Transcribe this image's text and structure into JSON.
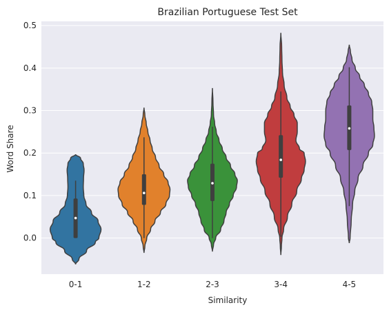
{
  "chart_data": {
    "type": "violin",
    "title": "Brazilian Portuguese Test Set",
    "xlabel": "Similarity",
    "ylabel": "Word Share",
    "ylim": [
      -0.085,
      0.51
    ],
    "yticks": [
      0.0,
      0.1,
      0.2,
      0.3,
      0.4,
      0.5
    ],
    "ytick_labels": [
      "0.0",
      "0.1",
      "0.2",
      "0.3",
      "0.4",
      "0.5"
    ],
    "grid": true,
    "background_color": "#eaeaf2",
    "categories": [
      "0-1",
      "1-2",
      "2-3",
      "3-4",
      "4-5"
    ],
    "colors": [
      "#3274a1",
      "#e1812c",
      "#3a923a",
      "#c03d3e",
      "#9372b2"
    ],
    "violins": [
      {
        "category": "0-1",
        "min": -0.062,
        "max": 0.197,
        "whisker_low": 0.0,
        "whisker_high": 0.135,
        "q1": 0.0,
        "median": 0.047,
        "q3": 0.093,
        "density": [
          [
            -0.062,
            0.0
          ],
          [
            -0.05,
            0.12
          ],
          [
            -0.03,
            0.4
          ],
          [
            -0.01,
            0.72
          ],
          [
            0.0,
            0.85
          ],
          [
            0.02,
            0.93
          ],
          [
            0.04,
            0.82
          ],
          [
            0.06,
            0.58
          ],
          [
            0.08,
            0.38
          ],
          [
            0.1,
            0.3
          ],
          [
            0.12,
            0.28
          ],
          [
            0.14,
            0.29
          ],
          [
            0.16,
            0.31
          ],
          [
            0.175,
            0.28
          ],
          [
            0.188,
            0.18
          ],
          [
            0.197,
            0.0
          ]
        ]
      },
      {
        "category": "1-2",
        "min": -0.035,
        "max": 0.307,
        "whisker_low": 0.0,
        "whisker_high": 0.237,
        "q1": 0.078,
        "median": 0.106,
        "q3": 0.15,
        "density": [
          [
            -0.035,
            0.0
          ],
          [
            -0.02,
            0.03
          ],
          [
            0.0,
            0.1
          ],
          [
            0.02,
            0.24
          ],
          [
            0.04,
            0.4
          ],
          [
            0.06,
            0.6
          ],
          [
            0.08,
            0.8
          ],
          [
            0.1,
            0.93
          ],
          [
            0.115,
            0.95
          ],
          [
            0.13,
            0.88
          ],
          [
            0.15,
            0.72
          ],
          [
            0.17,
            0.55
          ],
          [
            0.19,
            0.42
          ],
          [
            0.21,
            0.3
          ],
          [
            0.23,
            0.22
          ],
          [
            0.25,
            0.14
          ],
          [
            0.27,
            0.08
          ],
          [
            0.29,
            0.03
          ],
          [
            0.307,
            0.0
          ]
        ]
      },
      {
        "category": "2-3",
        "min": -0.032,
        "max": 0.353,
        "whisker_low": 0.0,
        "whisker_high": 0.262,
        "q1": 0.087,
        "median": 0.129,
        "q3": 0.175,
        "density": [
          [
            -0.032,
            0.0
          ],
          [
            -0.015,
            0.04
          ],
          [
            0.0,
            0.12
          ],
          [
            0.02,
            0.3
          ],
          [
            0.04,
            0.42
          ],
          [
            0.06,
            0.5
          ],
          [
            0.08,
            0.62
          ],
          [
            0.1,
            0.76
          ],
          [
            0.12,
            0.88
          ],
          [
            0.135,
            0.91
          ],
          [
            0.15,
            0.82
          ],
          [
            0.17,
            0.66
          ],
          [
            0.19,
            0.5
          ],
          [
            0.21,
            0.36
          ],
          [
            0.23,
            0.24
          ],
          [
            0.25,
            0.14
          ],
          [
            0.27,
            0.08
          ],
          [
            0.29,
            0.04
          ],
          [
            0.32,
            0.02
          ],
          [
            0.353,
            0.0
          ]
        ]
      },
      {
        "category": "3-4",
        "min": -0.04,
        "max": 0.483,
        "whisker_low": 0.003,
        "whisker_high": 0.345,
        "q1": 0.142,
        "median": 0.184,
        "q3": 0.242,
        "density": [
          [
            -0.04,
            0.0
          ],
          [
            -0.02,
            0.02
          ],
          [
            0.0,
            0.04
          ],
          [
            0.02,
            0.1
          ],
          [
            0.05,
            0.24
          ],
          [
            0.08,
            0.4
          ],
          [
            0.11,
            0.58
          ],
          [
            0.14,
            0.75
          ],
          [
            0.16,
            0.85
          ],
          [
            0.18,
            0.9
          ],
          [
            0.2,
            0.85
          ],
          [
            0.21,
            0.68
          ],
          [
            0.23,
            0.55
          ],
          [
            0.25,
            0.6
          ],
          [
            0.27,
            0.6
          ],
          [
            0.29,
            0.48
          ],
          [
            0.31,
            0.34
          ],
          [
            0.33,
            0.22
          ],
          [
            0.36,
            0.12
          ],
          [
            0.39,
            0.06
          ],
          [
            0.42,
            0.04
          ],
          [
            0.45,
            0.03
          ],
          [
            0.483,
            0.0
          ]
        ]
      },
      {
        "category": "4-5",
        "min": -0.012,
        "max": 0.455,
        "whisker_low": 0.075,
        "whisker_high": 0.402,
        "q1": 0.207,
        "median": 0.258,
        "q3": 0.312,
        "density": [
          [
            -0.012,
            0.0
          ],
          [
            0.0,
            0.03
          ],
          [
            0.04,
            0.07
          ],
          [
            0.08,
            0.12
          ],
          [
            0.11,
            0.2
          ],
          [
            0.14,
            0.32
          ],
          [
            0.17,
            0.5
          ],
          [
            0.2,
            0.7
          ],
          [
            0.22,
            0.86
          ],
          [
            0.24,
            0.92
          ],
          [
            0.26,
            0.9
          ],
          [
            0.28,
            0.86
          ],
          [
            0.3,
            0.86
          ],
          [
            0.32,
            0.82
          ],
          [
            0.34,
            0.7
          ],
          [
            0.36,
            0.55
          ],
          [
            0.38,
            0.38
          ],
          [
            0.4,
            0.22
          ],
          [
            0.42,
            0.1
          ],
          [
            0.44,
            0.04
          ],
          [
            0.455,
            0.0
          ]
        ]
      }
    ]
  }
}
